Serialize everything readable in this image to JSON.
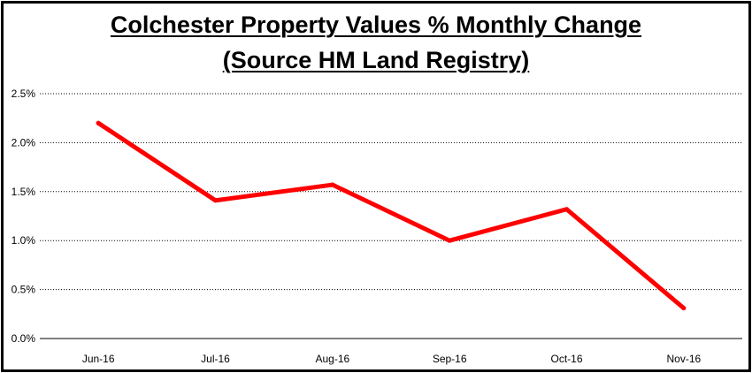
{
  "chart_data": {
    "type": "line",
    "title_lines": [
      "Colchester Property Values % Monthly Change",
      "(Source HM Land Registry)"
    ],
    "categories": [
      "Jun-16",
      "Jul-16",
      "Aug-16",
      "Sep-16",
      "Oct-16",
      "Nov-16"
    ],
    "series": [
      {
        "values": [
          2.2,
          1.41,
          1.57,
          1.0,
          1.32,
          0.31
        ],
        "color": "#ff0000"
      }
    ],
    "ylim": [
      0,
      2.5
    ],
    "y_ticks": [
      "0.0%",
      "0.5%",
      "1.0%",
      "1.5%",
      "2.0%",
      "2.5%"
    ],
    "grid": "horizontal-dotted",
    "legend": "none"
  }
}
